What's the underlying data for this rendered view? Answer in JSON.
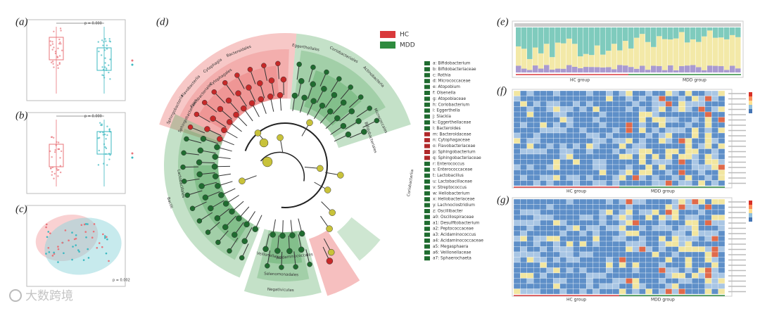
{
  "panels": [
    "(a)",
    "(b)",
    "(c)",
    "(d)",
    "(e)",
    "(f)",
    "(g)"
  ],
  "panel_a": {
    "p_value": "p = 0.000"
  },
  "panel_b": {
    "p_value": "p = 0.000"
  },
  "panel_c": {
    "p_value": "p = 0.002"
  },
  "cladogram": {
    "legend": [
      {
        "name": "HC",
        "color": "#d9393b"
      },
      {
        "name": "MDD",
        "color": "#2e8b3e"
      }
    ],
    "clade_labels": [
      "Bacteroidales",
      "Cytophagia",
      "Cytophagales",
      "Flavobacteriia",
      "Flavobacteriales",
      "Sphingobacteriia",
      "Sphingobacteriales",
      "Eggerthellales",
      "Coriobacteriales",
      "Actinobacteria",
      "Micrococcales",
      "Bifidobacteriales",
      "Coriobacteriia",
      "Lactobacillales",
      "Bacilli",
      "Negativicutes",
      "Selenomonadales",
      "Acidaminococcales",
      "Veillonellales"
    ],
    "key": [
      {
        "label": "a: Bifidobacterium",
        "color": "#1f6b2f"
      },
      {
        "label": "b: Bifidobacteriaceae",
        "color": "#1f6b2f"
      },
      {
        "label": "c: Rothia",
        "color": "#1f6b2f"
      },
      {
        "label": "d: Micrococcaceae",
        "color": "#1f6b2f"
      },
      {
        "label": "e: Atopobium",
        "color": "#1f6b2f"
      },
      {
        "label": "f: Olsenella",
        "color": "#1f6b2f"
      },
      {
        "label": "g: Atopobiaceae",
        "color": "#1f6b2f"
      },
      {
        "label": "h: Coriobacterium",
        "color": "#1f6b2f"
      },
      {
        "label": "i: Eggerthella",
        "color": "#1f6b2f"
      },
      {
        "label": "j: Slackia",
        "color": "#1f6b2f"
      },
      {
        "label": "k: Eggerthellaceae",
        "color": "#1f6b2f"
      },
      {
        "label": "l: Bacteroides",
        "color": "#1f6b2f"
      },
      {
        "label": "m: Bacteroidaceae",
        "color": "#b0282a"
      },
      {
        "label": "n: Cytophagaceae",
        "color": "#b0282a"
      },
      {
        "label": "o: Flavobacteriaceae",
        "color": "#b0282a"
      },
      {
        "label": "p: Sphingobacterium",
        "color": "#b0282a"
      },
      {
        "label": "q: Sphingobacteriaceae",
        "color": "#b0282a"
      },
      {
        "label": "r: Enterococcus",
        "color": "#1f6b2f"
      },
      {
        "label": "s: Enterococcaceae",
        "color": "#1f6b2f"
      },
      {
        "label": "t: Lactobacillus",
        "color": "#1f6b2f"
      },
      {
        "label": "u: Lactobacillaceae",
        "color": "#1f6b2f"
      },
      {
        "label": "v: Streptococcus",
        "color": "#1f6b2f"
      },
      {
        "label": "w: Heliobacterium",
        "color": "#1f6b2f"
      },
      {
        "label": "x: Heliobacteriaceae",
        "color": "#1f6b2f"
      },
      {
        "label": "y: Lachnoclostridium",
        "color": "#1f6b2f"
      },
      {
        "label": "z: Oscillibacter",
        "color": "#1f6b2f"
      },
      {
        "label": "a0: Oscillospiraceae",
        "color": "#1f6b2f"
      },
      {
        "label": "a1: Desulfitobacterium",
        "color": "#1f6b2f"
      },
      {
        "label": "a2: Peptococcaceae",
        "color": "#1f6b2f"
      },
      {
        "label": "a3: Acidaminococcus",
        "color": "#1f6b2f"
      },
      {
        "label": "a4: Acidaminococcaceae",
        "color": "#1f6b2f"
      },
      {
        "label": "a5: Megasphaera",
        "color": "#1f6b2f"
      },
      {
        "label": "a6: Veillonellaceae",
        "color": "#1f6b2f"
      },
      {
        "label": "a7: Sphaerochaeta",
        "color": "#1f6b2f"
      }
    ]
  },
  "panel_e": {
    "groups": [
      "HC group",
      "MDD group"
    ]
  },
  "panel_f": {
    "groups": [
      "HC group",
      "MDD group"
    ]
  },
  "panel_g": {
    "groups": [
      "HC group",
      "MDD group"
    ]
  },
  "watermark": "大数跨境"
}
